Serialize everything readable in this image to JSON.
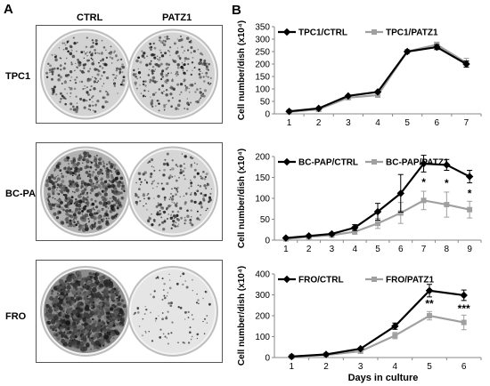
{
  "panel_a": {
    "letter": "A",
    "columns": [
      "CTRL",
      "PATZ1"
    ],
    "rows": [
      {
        "label": "TPC1",
        "ctrl_density": 0.25,
        "patz_density": 0.25
      },
      {
        "label": "BC-PAP",
        "ctrl_density": 0.6,
        "patz_density": 0.22
      },
      {
        "label": "FRO",
        "ctrl_density": 1.0,
        "patz_density": 0.06
      }
    ]
  },
  "panel_b": {
    "letter": "B",
    "xlabel": "Days in culture"
  },
  "colors": {
    "ctrl": "#000000",
    "patz": "#a0a0a0"
  },
  "chart_data": [
    {
      "type": "line",
      "ylabel": "Cell number/dish (x10⁴)",
      "ylim": [
        0,
        350
      ],
      "yticks": [
        0,
        50,
        100,
        150,
        200,
        250,
        300,
        350
      ],
      "x": [
        1,
        2,
        3,
        4,
        5,
        6,
        7
      ],
      "grid": false,
      "legend": "top-left",
      "series": [
        {
          "name": "TPC1/CTRL",
          "values": [
            10,
            22,
            72,
            88,
            250,
            268,
            200
          ],
          "err": [
            0,
            0,
            0,
            0,
            0,
            10,
            12
          ]
        },
        {
          "name": "TPC1/PATZ1",
          "values": [
            8,
            18,
            65,
            75,
            250,
            278,
            205
          ],
          "err": [
            0,
            0,
            0,
            0,
            0,
            10,
            18
          ]
        }
      ],
      "annotations": []
    },
    {
      "type": "line",
      "ylabel": "Cell number/dish (x10⁴)",
      "ylim": [
        0,
        200
      ],
      "yticks": [
        0,
        50,
        100,
        150,
        200
      ],
      "x": [
        1,
        2,
        3,
        4,
        5,
        6,
        7,
        8,
        9
      ],
      "grid": false,
      "legend": "top-left",
      "series": [
        {
          "name": "BC-PAP/CTRL",
          "values": [
            5,
            10,
            15,
            30,
            68,
            112,
            183,
            180,
            152
          ],
          "err": [
            0,
            0,
            3,
            7,
            20,
            45,
            20,
            13,
            15
          ]
        },
        {
          "name": "BC-PAP/PATZ1",
          "values": [
            3,
            8,
            12,
            20,
            40,
            65,
            95,
            85,
            73
          ],
          "err": [
            0,
            0,
            0,
            6,
            12,
            25,
            22,
            30,
            20
          ]
        }
      ],
      "annotations": [
        {
          "x": 7,
          "y": 130,
          "text": "*"
        },
        {
          "x": 8,
          "y": 128,
          "text": "*"
        },
        {
          "x": 9,
          "y": 103,
          "text": "*"
        }
      ]
    },
    {
      "type": "line",
      "ylabel": "Cell number/dish (x10⁴)",
      "ylim": [
        0,
        400
      ],
      "yticks": [
        0,
        100,
        200,
        300,
        400
      ],
      "x": [
        1,
        2,
        3,
        4,
        5,
        6
      ],
      "grid": false,
      "legend": "top-left",
      "series": [
        {
          "name": "FRO/CTRL",
          "values": [
            5,
            15,
            42,
            150,
            320,
            298
          ],
          "err": [
            0,
            0,
            0,
            15,
            30,
            25
          ]
        },
        {
          "name": "FRO/PATZ1",
          "values": [
            5,
            12,
            30,
            105,
            200,
            168
          ],
          "err": [
            0,
            0,
            0,
            15,
            20,
            35
          ]
        }
      ],
      "annotations": [
        {
          "x": 5,
          "y": 240,
          "text": "**"
        },
        {
          "x": 6,
          "y": 218,
          "text": "***"
        }
      ]
    }
  ]
}
